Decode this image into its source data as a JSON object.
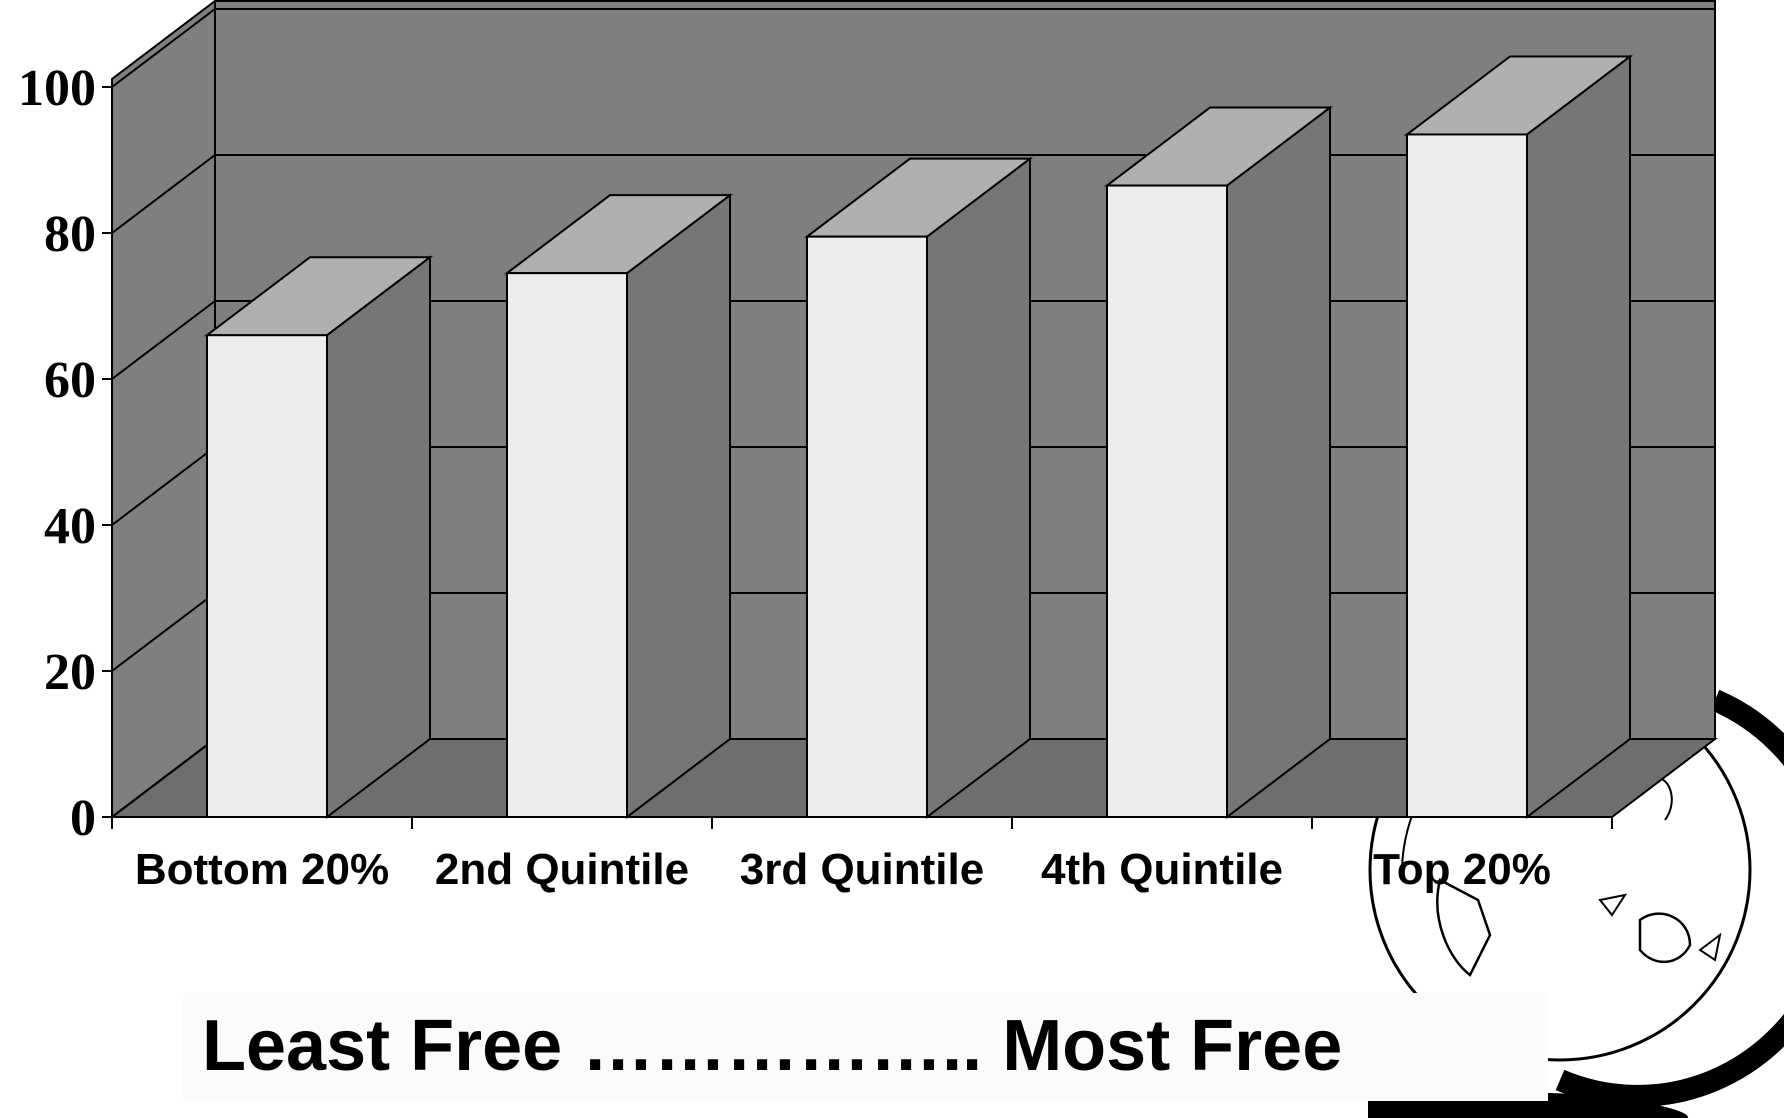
{
  "chart_data": {
    "type": "bar",
    "style": "3d",
    "categories": [
      "Bottom 20%",
      "2nd Quintile",
      "3rd Quintile",
      "4th Quintile",
      "Top 20%"
    ],
    "values": [
      66,
      74.5,
      79.5,
      86.5,
      93.5
    ],
    "ylim": [
      0,
      100
    ],
    "yticks": [
      "0",
      "20",
      "40",
      "60",
      "80",
      "100"
    ],
    "grid": true,
    "legend": "none",
    "colors": {
      "wall": "#7f7f7f",
      "floor": "#6e6e6e",
      "bar_front": "#ececec",
      "bar_top": "#b0b0b0",
      "bar_side": "#767676",
      "grid": "#000000"
    }
  },
  "footer": {
    "label": "Least Free …………….. Most Free"
  },
  "decoration": {
    "icon": "globe-icon"
  }
}
